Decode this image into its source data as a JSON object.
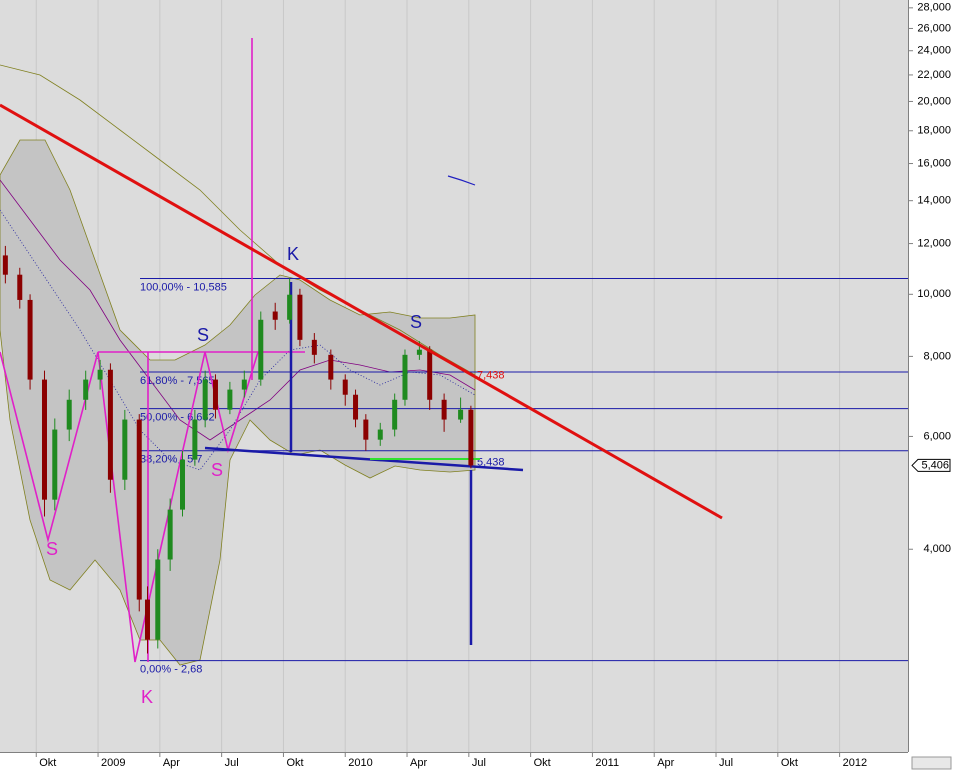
{
  "chart_data": {
    "type": "candlestick",
    "log_scale": true,
    "up_color": "#1f8a1f",
    "down_color": "#8b0000",
    "xlim": [
      -4.76,
      39.32
    ],
    "ylim": [
      1930,
      28800
    ],
    "xticks": [
      {
        "value": -3,
        "label": "Okt"
      },
      {
        "value": 0,
        "label": "2009"
      },
      {
        "value": 3,
        "label": "Apr"
      },
      {
        "value": 6,
        "label": "Jul"
      },
      {
        "value": 9,
        "label": "Okt"
      },
      {
        "value": 12,
        "label": "2010"
      },
      {
        "value": 15,
        "label": "Apr"
      },
      {
        "value": 18,
        "label": "Jul"
      },
      {
        "value": 21,
        "label": "Okt"
      },
      {
        "value": 24,
        "label": "2011"
      },
      {
        "value": 27,
        "label": "Apr"
      },
      {
        "value": 30,
        "label": "Jul"
      },
      {
        "value": 33,
        "label": "Okt"
      },
      {
        "value": 36,
        "label": "2012"
      }
    ],
    "yticks": [
      {
        "value": 28000,
        "label": "28,000"
      },
      {
        "value": 26000,
        "label": "26,000"
      },
      {
        "value": 24000,
        "label": "24,000"
      },
      {
        "value": 22000,
        "label": "22,000"
      },
      {
        "value": 20000,
        "label": "20,000"
      },
      {
        "value": 18000,
        "label": "18,000"
      },
      {
        "value": 16000,
        "label": "16,000"
      },
      {
        "value": 14000,
        "label": "14,000"
      },
      {
        "value": 12000,
        "label": "12,000"
      },
      {
        "value": 10000,
        "label": "10,000"
      },
      {
        "value": 8000,
        "label": "8,000"
      },
      {
        "value": 6000,
        "label": "6,000"
      },
      {
        "value": 4000,
        "label": "4,000"
      }
    ],
    "x": [
      -4.5,
      -3.8,
      -3.3,
      -2.6,
      -2.1,
      -1.4,
      -0.6,
      0.1,
      0.6,
      1.3,
      2.0,
      2.4,
      2.9,
      3.5,
      4.1,
      4.7,
      5.2,
      5.7,
      6.4,
      7.1,
      7.9,
      8.6,
      9.3,
      9.8,
      10.5,
      11.3,
      12.0,
      12.5,
      13.0,
      13.7,
      14.4,
      14.9,
      15.6,
      16.1,
      16.8,
      17.6,
      18.1
    ],
    "open": [
      11500,
      10730,
      9800,
      7360,
      4780,
      6150,
      6845,
      7360,
      7625,
      5135,
      6375,
      3338,
      2890,
      3855,
      4612,
      5520,
      6375,
      7360,
      6605,
      7100,
      7360,
      9400,
      9125,
      9985,
      8490,
      8045,
      7360,
      6970,
      6375,
      5930,
      6150,
      6845,
      8045,
      8195,
      6845,
      6375,
      6605
    ],
    "high": [
      11900,
      11000,
      10000,
      7600,
      6400,
      7100,
      7600,
      7900,
      7800,
      6600,
      6500,
      3500,
      4000,
      4800,
      5700,
      6600,
      7600,
      7500,
      7300,
      7600,
      9400,
      9700,
      10585,
      10200,
      8700,
      8200,
      7500,
      7100,
      6500,
      6300,
      7000,
      8200,
      8450,
      8300,
      7000,
      6900,
      6700
    ],
    "low": [
      10400,
      9500,
      7100,
      4500,
      4600,
      5900,
      6600,
      7100,
      4900,
      4950,
      3200,
      2750,
      2800,
      3700,
      4500,
      5400,
      6200,
      6400,
      6500,
      6900,
      7200,
      8800,
      9000,
      8300,
      7800,
      7100,
      6700,
      6200,
      5700,
      5800,
      6000,
      6700,
      7900,
      6600,
      6100,
      6300,
      5350
    ],
    "close": [
      10730,
      9800,
      7360,
      4780,
      6150,
      6845,
      7360,
      7625,
      5135,
      6375,
      3338,
      2890,
      3855,
      4612,
      5520,
      6375,
      7360,
      6605,
      7100,
      7360,
      9125,
      9125,
      9985,
      8490,
      8045,
      7360,
      6970,
      6375,
      5930,
      6150,
      6845,
      8045,
      8195,
      6845,
      6375,
      6605,
      5406
    ],
    "levels": [
      {
        "value": 10585,
        "label": "100,00% - 10,585"
      },
      {
        "value": 7565,
        "label": "61,80% - 7,565"
      },
      {
        "value": 6632,
        "label": "50,00% - 6,632"
      },
      {
        "value": 5700,
        "label": "38,20% - 5,7"
      },
      {
        "value": 2680,
        "label": "0,00% - 2,68"
      }
    ],
    "level_color": "#1a1aa8",
    "price_labels": [
      {
        "value": 7438,
        "label": "7,438",
        "color": "#e01010"
      },
      {
        "value": 5438,
        "label": "5,438",
        "color": "#1a1aa8"
      }
    ],
    "last_price": {
      "value": 5406,
      "label": "5,406"
    },
    "annotations": [
      "K",
      "S",
      "S",
      "S",
      "S",
      "K"
    ]
  }
}
